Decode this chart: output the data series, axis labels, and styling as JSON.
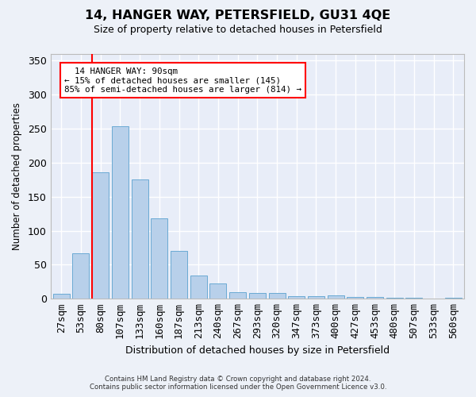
{
  "title": "14, HANGER WAY, PETERSFIELD, GU31 4QE",
  "subtitle": "Size of property relative to detached houses in Petersfield",
  "xlabel": "Distribution of detached houses by size in Petersfield",
  "ylabel": "Number of detached properties",
  "bar_color": "#b8d0ea",
  "bar_edge_color": "#6aaad4",
  "plot_bg_color": "#e8edf8",
  "fig_bg_color": "#edf1f8",
  "grid_color": "#ffffff",
  "categories": [
    "27sqm",
    "53sqm",
    "80sqm",
    "107sqm",
    "133sqm",
    "160sqm",
    "187sqm",
    "213sqm",
    "240sqm",
    "267sqm",
    "293sqm",
    "320sqm",
    "347sqm",
    "373sqm",
    "400sqm",
    "427sqm",
    "453sqm",
    "480sqm",
    "507sqm",
    "533sqm",
    "560sqm"
  ],
  "values": [
    7,
    67,
    186,
    253,
    175,
    118,
    70,
    34,
    22,
    10,
    8,
    8,
    4,
    4,
    5,
    3,
    3,
    1,
    2,
    0,
    2
  ],
  "ylim": [
    0,
    360
  ],
  "yticks": [
    0,
    50,
    100,
    150,
    200,
    250,
    300,
    350
  ],
  "property_label": "14 HANGER WAY: 90sqm",
  "pct_smaller": 15,
  "n_smaller": 145,
  "pct_larger": 85,
  "n_larger": 814,
  "red_line_index": 2,
  "footer_line1": "Contains HM Land Registry data © Crown copyright and database right 2024.",
  "footer_line2": "Contains public sector information licensed under the Open Government Licence v3.0."
}
